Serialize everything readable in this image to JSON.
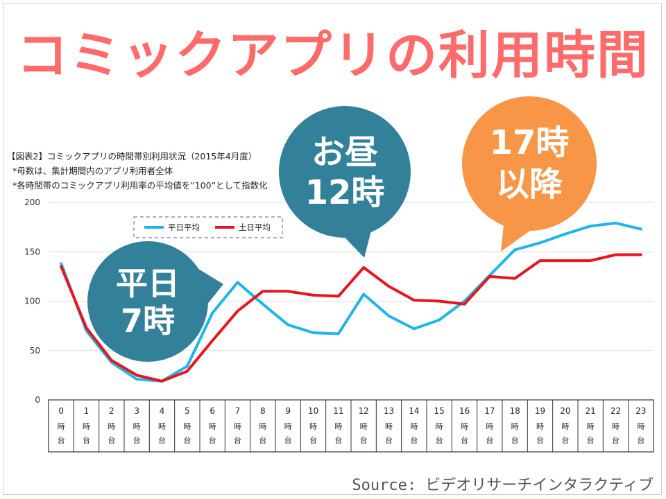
{
  "slide": {
    "title": "コミックアプリの利用時間",
    "note_title": "【図表2】コミックアプリの時間帯別利用状況（2015年4月度）",
    "note_1": "*母数は、集計期間内のアプリ利用者全体",
    "note_2": "*各時間帯のコミックアプリ利用率の平均値を“100”として指数化",
    "source": "Source: ビデオリサーチインタラクティブ"
  },
  "colors": {
    "title": "#ff6b6b",
    "weekday": "#1fb5ea",
    "weekend": "#e8141e",
    "bubble_teal": "#33809a",
    "bubble_orange": "#f79646",
    "grid": "#d9d9d9"
  },
  "callouts": [
    {
      "id": "weekday-7",
      "lines": [
        "平日",
        "7時"
      ],
      "color": "teal"
    },
    {
      "id": "noon-12",
      "lines": [
        "お昼",
        "12時"
      ],
      "color": "teal"
    },
    {
      "id": "after-17",
      "lines": [
        "17時",
        "以降"
      ],
      "color": "orange"
    }
  ],
  "chart_data": {
    "type": "line",
    "title": "",
    "xlabel": "",
    "ylabel": "",
    "ylim": [
      0,
      200
    ],
    "yticks": [
      0,
      50,
      100,
      150,
      200
    ],
    "grid": true,
    "legend_position": "top-left",
    "categories": [
      "0",
      "1",
      "2",
      "3",
      "4",
      "5",
      "6",
      "7",
      "8",
      "9",
      "10",
      "11",
      "12",
      "13",
      "14",
      "15",
      "16",
      "17",
      "18",
      "19",
      "20",
      "21",
      "22",
      "23"
    ],
    "category_suffix": [
      "時",
      "台"
    ],
    "series": [
      {
        "name": "平日平均",
        "color": "#1fb5ea",
        "values": [
          138,
          70,
          38,
          21,
          19,
          34,
          88,
          119,
          97,
          76,
          68,
          67,
          107,
          85,
          72,
          81,
          100,
          126,
          152,
          159,
          168,
          176,
          179,
          173
        ]
      },
      {
        "name": "土日平均",
        "color": "#e8141e",
        "values": [
          135,
          73,
          40,
          25,
          19,
          29,
          60,
          90,
          110,
          110,
          106,
          105,
          134,
          115,
          101,
          100,
          97,
          125,
          123,
          141,
          141,
          141,
          147,
          147
        ]
      }
    ]
  }
}
